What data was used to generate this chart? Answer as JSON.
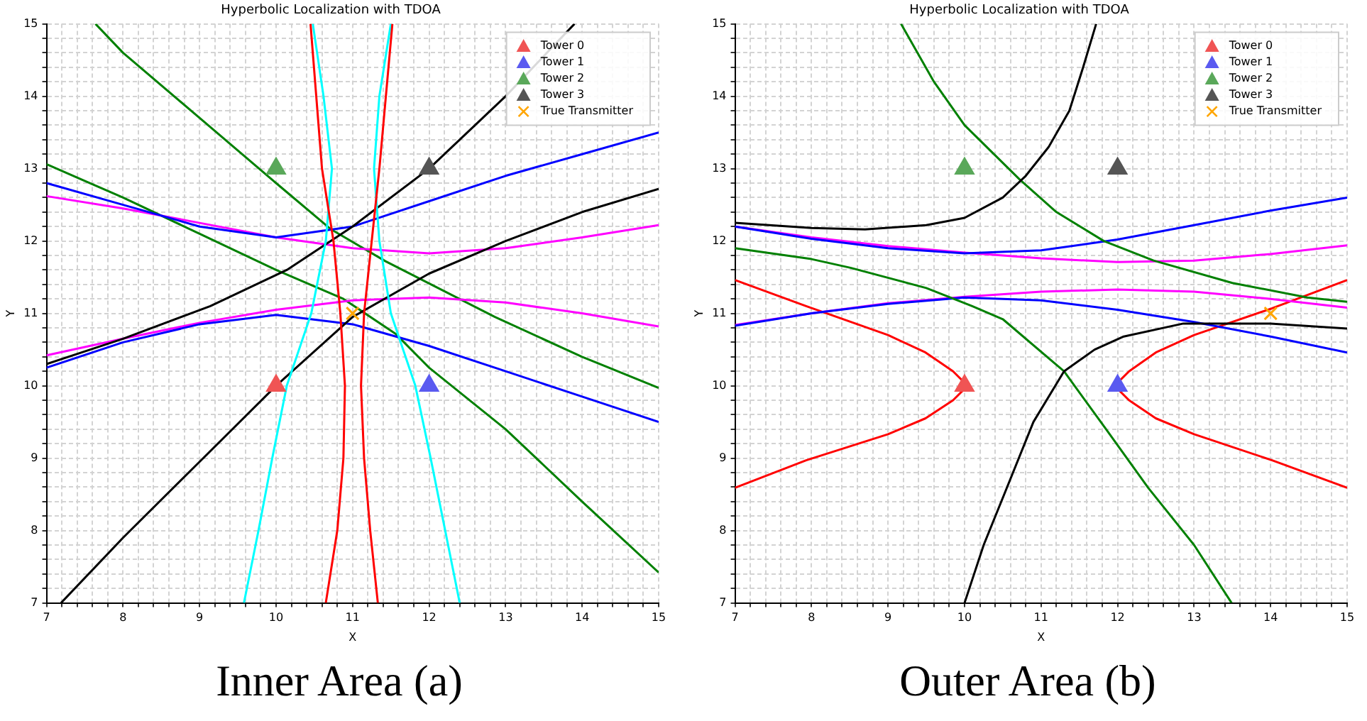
{
  "chart_data": [
    {
      "type": "line",
      "title": "Hyperbolic Localization with TDOA",
      "xlabel": "X",
      "ylabel": "Y",
      "annotations": [
        "Inner Area (a)"
      ],
      "legend": "top right",
      "grid": true,
      "xlim": [
        7,
        15
      ],
      "ylim": [
        7,
        15
      ],
      "xticks": [
        7,
        {
          "value": 7.2,
          "label": null
        },
        {
          "value": 7.4,
          "label": null
        },
        {
          "value": 7.6,
          "label": null
        },
        {
          "value": 7.8,
          "label": null
        },
        8,
        {
          "value": 8.2,
          "label": null
        },
        {
          "value": 8.4,
          "label": null
        },
        {
          "value": 8.6,
          "label": null
        },
        {
          "value": 8.8,
          "label": null
        },
        9,
        {
          "value": 9.2,
          "label": null
        },
        {
          "value": 9.4,
          "label": null
        },
        {
          "value": 9.6,
          "label": null
        },
        {
          "value": 9.8,
          "label": null
        },
        10,
        {
          "value": 10.2,
          "label": null
        },
        {
          "value": 10.4,
          "label": null
        },
        {
          "value": 10.6,
          "label": null
        },
        {
          "value": 10.8,
          "label": null
        },
        11,
        {
          "value": 11.2,
          "label": null
        },
        {
          "value": 11.4,
          "label": null
        },
        {
          "value": 11.6,
          "label": null
        },
        {
          "value": 11.8,
          "label": null
        },
        12,
        {
          "value": 12.2,
          "label": null
        },
        {
          "value": 12.4,
          "label": null
        },
        {
          "value": 12.6,
          "label": null
        },
        {
          "value": 12.8,
          "label": null
        },
        13,
        {
          "value": 13.2,
          "label": null
        },
        {
          "value": 13.4,
          "label": null
        },
        {
          "value": 13.6,
          "label": null
        },
        {
          "value": 13.8,
          "label": null
        },
        14,
        {
          "value": 14.2,
          "label": null
        },
        {
          "value": 14.4,
          "label": null
        },
        {
          "value": 14.6,
          "label": null
        },
        {
          "value": 14.8,
          "label": null
        },
        15
      ],
      "yticks": [
        7,
        {
          "value": 7.2,
          "label": null
        },
        {
          "value": 7.4,
          "label": null
        },
        {
          "value": 7.6,
          "label": null
        },
        {
          "value": 7.8,
          "label": null
        },
        8,
        {
          "value": 8.2,
          "label": null
        },
        {
          "value": 8.4,
          "label": null
        },
        {
          "value": 8.6,
          "label": null
        },
        {
          "value": 8.8,
          "label": null
        },
        9,
        {
          "value": 9.2,
          "label": null
        },
        {
          "value": 9.4,
          "label": null
        },
        {
          "value": 9.6,
          "label": null
        },
        {
          "value": 9.8,
          "label": null
        },
        10,
        {
          "value": 10.2,
          "label": null
        },
        {
          "value": 10.4,
          "label": null
        },
        {
          "value": 10.6,
          "label": null
        },
        {
          "value": 10.8,
          "label": null
        },
        11,
        {
          "value": 11.2,
          "label": null
        },
        {
          "value": 11.4,
          "label": null
        },
        {
          "value": 11.6,
          "label": null
        },
        {
          "value": 11.8,
          "label": null
        },
        12,
        {
          "value": 12.2,
          "label": null
        },
        {
          "value": 12.4,
          "label": null
        },
        {
          "value": 12.6,
          "label": null
        },
        {
          "value": 12.8,
          "label": null
        },
        13,
        {
          "value": 13.2,
          "label": null
        },
        {
          "value": 13.4,
          "label": null
        },
        {
          "value": 13.6,
          "label": null
        },
        {
          "value": 13.8,
          "label": null
        },
        14,
        {
          "value": 14.2,
          "label": null
        },
        {
          "value": 14.4,
          "label": null
        },
        {
          "value": 14.6,
          "label": null
        },
        {
          "value": 14.8,
          "label": null
        },
        15
      ],
      "series": [
        {
          "name": "Tower 0",
          "type": "scatter",
          "marker": "triangle",
          "color": "#f05454",
          "x": [
            10
          ],
          "values": [
            10
          ]
        },
        {
          "name": "Tower 1",
          "type": "scatter",
          "marker": "triangle",
          "color": "#5a5af0",
          "x": [
            12
          ],
          "values": [
            10
          ]
        },
        {
          "name": "Tower 2",
          "type": "scatter",
          "marker": "triangle",
          "color": "#5aa85a",
          "x": [
            10
          ],
          "values": [
            13
          ]
        },
        {
          "name": "Tower 3",
          "type": "scatter",
          "marker": "triangle",
          "color": "#555555",
          "x": [
            12
          ],
          "values": [
            13
          ]
        },
        {
          "name": "True Transmitter",
          "type": "scatter",
          "marker": "cross",
          "color": "#ffa500",
          "x": [
            11
          ],
          "values": [
            11
          ]
        },
        {
          "type": "line",
          "marker": "none",
          "color": "#ff0000",
          "x": [
            10.45,
            10.6,
            10.75,
            10.84,
            10.9,
            10.88,
            10.8,
            10.65
          ],
          "values": [
            15,
            13,
            12,
            11,
            10,
            9,
            8,
            7
          ]
        },
        {
          "type": "line",
          "marker": "none",
          "color": "#ff0000",
          "x": [
            11.52,
            11.35,
            11.25,
            11.15,
            11.11,
            11.15,
            11.23,
            11.33
          ],
          "values": [
            15,
            13,
            12,
            11,
            10,
            9,
            8,
            7
          ]
        },
        {
          "type": "line",
          "marker": "none",
          "color": "#00ffff",
          "x": [
            10.48,
            10.62,
            10.73,
            10.65,
            10.46,
            10.14,
            9.95,
            9.77,
            9.58
          ],
          "values": [
            15,
            14,
            13,
            12,
            11,
            10,
            9,
            8,
            7
          ]
        },
        {
          "type": "line",
          "marker": "none",
          "color": "#00ffff",
          "x": [
            11.5,
            11.35,
            11.28,
            11.35,
            11.5,
            11.82,
            12.02,
            12.21,
            12.4
          ],
          "values": [
            15,
            14,
            13,
            12,
            11,
            10,
            9,
            8,
            7
          ]
        },
        {
          "type": "line",
          "marker": "none",
          "color": "#000000",
          "x": [
            7,
            8,
            9.14,
            10.14,
            11,
            12,
            13,
            13.9
          ],
          "values": [
            10.3,
            10.65,
            11.1,
            11.6,
            12.2,
            13,
            14,
            15
          ]
        },
        {
          "type": "line",
          "marker": "none",
          "color": "#000000",
          "x": [
            7.19,
            8,
            9,
            10,
            11,
            12,
            13,
            14,
            15
          ],
          "values": [
            7,
            7.9,
            8.95,
            10,
            10.95,
            11.55,
            12,
            12.4,
            12.72
          ]
        },
        {
          "type": "line",
          "marker": "none",
          "color": "#0000ff",
          "x": [
            7,
            8,
            9,
            10,
            11,
            12,
            13,
            14,
            15
          ],
          "values": [
            12.8,
            12.5,
            12.2,
            12.05,
            12.2,
            12.55,
            12.9,
            13.2,
            13.5
          ]
        },
        {
          "type": "line",
          "marker": "none",
          "color": "#0000ff",
          "x": [
            7,
            8,
            9,
            10,
            11,
            12,
            13,
            14,
            15
          ],
          "values": [
            10.25,
            10.6,
            10.85,
            10.98,
            10.85,
            10.55,
            10.2,
            9.85,
            9.5
          ]
        },
        {
          "type": "line",
          "marker": "none",
          "color": "#ff00ff",
          "x": [
            7,
            8,
            9,
            10,
            11,
            12,
            13,
            14,
            15
          ],
          "values": [
            12.62,
            12.45,
            12.25,
            12.05,
            11.9,
            11.83,
            11.9,
            12.05,
            12.22
          ]
        },
        {
          "type": "line",
          "marker": "none",
          "color": "#ff00ff",
          "x": [
            7,
            8,
            9,
            10,
            11,
            12,
            13,
            14,
            15
          ],
          "values": [
            10.42,
            10.65,
            10.87,
            11.05,
            11.18,
            11.22,
            11.15,
            11,
            10.82
          ]
        },
        {
          "type": "line",
          "marker": "none",
          "color": "#008000",
          "x": [
            7.64,
            8,
            9,
            10,
            10.72,
            11.43,
            12.86,
            14,
            15
          ],
          "values": [
            15,
            14.6,
            13.7,
            12.8,
            12.16,
            11.72,
            10.95,
            10.4,
            9.97
          ]
        },
        {
          "type": "line",
          "marker": "none",
          "color": "#008000",
          "x": [
            7,
            8,
            9,
            10,
            10.88,
            11.56,
            12,
            13,
            14,
            15
          ],
          "values": [
            13.06,
            12.6,
            12.1,
            11.6,
            11.2,
            10.72,
            10.25,
            9.4,
            8.4,
            7.42
          ]
        }
      ]
    },
    {
      "type": "line",
      "title": "Hyperbolic Localization with TDOA",
      "xlabel": "X",
      "ylabel": "Y",
      "annotations": [
        "Outer Area (b)"
      ],
      "legend": "top right",
      "grid": true,
      "xlim": [
        7,
        15
      ],
      "ylim": [
        7,
        15
      ],
      "xticks": [
        7,
        {
          "value": 7.2,
          "label": null
        },
        {
          "value": 7.4,
          "label": null
        },
        {
          "value": 7.6,
          "label": null
        },
        {
          "value": 7.8,
          "label": null
        },
        8,
        {
          "value": 8.2,
          "label": null
        },
        {
          "value": 8.4,
          "label": null
        },
        {
          "value": 8.6,
          "label": null
        },
        {
          "value": 8.8,
          "label": null
        },
        9,
        {
          "value": 9.2,
          "label": null
        },
        {
          "value": 9.4,
          "label": null
        },
        {
          "value": 9.6,
          "label": null
        },
        {
          "value": 9.8,
          "label": null
        },
        10,
        {
          "value": 10.2,
          "label": null
        },
        {
          "value": 10.4,
          "label": null
        },
        {
          "value": 10.6,
          "label": null
        },
        {
          "value": 10.8,
          "label": null
        },
        11,
        {
          "value": 11.2,
          "label": null
        },
        {
          "value": 11.4,
          "label": null
        },
        {
          "value": 11.6,
          "label": null
        },
        {
          "value": 11.8,
          "label": null
        },
        12,
        {
          "value": 12.2,
          "label": null
        },
        {
          "value": 12.4,
          "label": null
        },
        {
          "value": 12.6,
          "label": null
        },
        {
          "value": 12.8,
          "label": null
        },
        13,
        {
          "value": 13.2,
          "label": null
        },
        {
          "value": 13.4,
          "label": null
        },
        {
          "value": 13.6,
          "label": null
        },
        {
          "value": 13.8,
          "label": null
        },
        14,
        {
          "value": 14.2,
          "label": null
        },
        {
          "value": 14.4,
          "label": null
        },
        {
          "value": 14.6,
          "label": null
        },
        {
          "value": 14.8,
          "label": null
        },
        15
      ],
      "yticks": [
        7,
        {
          "value": 7.2,
          "label": null
        },
        {
          "value": 7.4,
          "label": null
        },
        {
          "value": 7.6,
          "label": null
        },
        {
          "value": 7.8,
          "label": null
        },
        8,
        {
          "value": 8.2,
          "label": null
        },
        {
          "value": 8.4,
          "label": null
        },
        {
          "value": 8.6,
          "label": null
        },
        {
          "value": 8.8,
          "label": null
        },
        9,
        {
          "value": 9.2,
          "label": null
        },
        {
          "value": 9.4,
          "label": null
        },
        {
          "value": 9.6,
          "label": null
        },
        {
          "value": 9.8,
          "label": null
        },
        10,
        {
          "value": 10.2,
          "label": null
        },
        {
          "value": 10.4,
          "label": null
        },
        {
          "value": 10.6,
          "label": null
        },
        {
          "value": 10.8,
          "label": null
        },
        11,
        {
          "value": 11.2,
          "label": null
        },
        {
          "value": 11.4,
          "label": null
        },
        {
          "value": 11.6,
          "label": null
        },
        {
          "value": 11.8,
          "label": null
        },
        12,
        {
          "value": 12.2,
          "label": null
        },
        {
          "value": 12.4,
          "label": null
        },
        {
          "value": 12.6,
          "label": null
        },
        {
          "value": 12.8,
          "label": null
        },
        13,
        {
          "value": 13.2,
          "label": null
        },
        {
          "value": 13.4,
          "label": null
        },
        {
          "value": 13.6,
          "label": null
        },
        {
          "value": 13.8,
          "label": null
        },
        14,
        {
          "value": 14.2,
          "label": null
        },
        {
          "value": 14.4,
          "label": null
        },
        {
          "value": 14.6,
          "label": null
        },
        {
          "value": 14.8,
          "label": null
        },
        15
      ],
      "series": [
        {
          "name": "Tower 0",
          "type": "scatter",
          "marker": "triangle",
          "color": "#f05454",
          "x": [
            10
          ],
          "values": [
            10
          ]
        },
        {
          "name": "Tower 1",
          "type": "scatter",
          "marker": "triangle",
          "color": "#5a5af0",
          "x": [
            12
          ],
          "values": [
            10
          ]
        },
        {
          "name": "Tower 2",
          "type": "scatter",
          "marker": "triangle",
          "color": "#5aa85a",
          "x": [
            10
          ],
          "values": [
            13
          ]
        },
        {
          "name": "Tower 3",
          "type": "scatter",
          "marker": "triangle",
          "color": "#555555",
          "x": [
            12
          ],
          "values": [
            13
          ]
        },
        {
          "name": "True Transmitter",
          "type": "scatter",
          "marker": "cross",
          "color": "#ffa500",
          "x": [
            14
          ],
          "values": [
            11
          ]
        },
        {
          "type": "line",
          "marker": "none",
          "color": "#000000",
          "x": [
            7,
            8,
            8.7,
            9.5,
            10,
            10.5,
            10.8,
            11.1,
            11.37,
            11.55,
            11.72
          ],
          "values": [
            12.25,
            12.18,
            12.16,
            12.22,
            12.32,
            12.6,
            12.9,
            13.3,
            13.8,
            14.4,
            15
          ]
        },
        {
          "type": "line",
          "marker": "none",
          "color": "#000000",
          "x": [
            10,
            10.25,
            10.53,
            10.9,
            11.3,
            11.7,
            12.08,
            12.86,
            14,
            15
          ],
          "values": [
            7,
            7.8,
            8.53,
            9.5,
            10.2,
            10.5,
            10.68,
            10.86,
            10.86,
            10.79
          ]
        },
        {
          "type": "line",
          "marker": "none",
          "color": "#008000",
          "x": [
            9.17,
            9.6,
            10,
            10.72,
            11.2,
            11.82,
            12.47,
            13.5,
            14.48,
            15
          ],
          "values": [
            15,
            14.2,
            13.6,
            12.85,
            12.4,
            12,
            11.73,
            11.42,
            11.22,
            11.16
          ]
        },
        {
          "type": "line",
          "marker": "none",
          "color": "#008000",
          "x": [
            7,
            8,
            8.51,
            9.5,
            10.1,
            10.5,
            11.3,
            11.85,
            12.4,
            13,
            13.49
          ],
          "values": [
            11.9,
            11.75,
            11.63,
            11.35,
            11.1,
            10.92,
            10.2,
            9.4,
            8.59,
            7.8,
            7
          ]
        },
        {
          "type": "line",
          "marker": "none",
          "color": "#0000ff",
          "x": [
            7,
            8,
            9,
            10,
            11,
            12,
            13,
            14,
            15
          ],
          "values": [
            12.2,
            12.03,
            11.9,
            11.83,
            11.87,
            12.02,
            12.22,
            12.42,
            12.6
          ]
        },
        {
          "type": "line",
          "marker": "none",
          "color": "#0000ff",
          "x": [
            7,
            8,
            9,
            10,
            11,
            12,
            13,
            14,
            15
          ],
          "values": [
            10.83,
            11,
            11.13,
            11.22,
            11.18,
            11.05,
            10.88,
            10.68,
            10.46
          ]
        },
        {
          "type": "line",
          "marker": "none",
          "color": "#ff00ff",
          "x": [
            7,
            8,
            9,
            10,
            11,
            12,
            13,
            14,
            15
          ],
          "values": [
            12.2,
            12.05,
            11.93,
            11.84,
            11.76,
            11.71,
            11.73,
            11.82,
            11.94
          ]
        },
        {
          "type": "line",
          "marker": "none",
          "color": "#ff00ff",
          "x": [
            7,
            8,
            9,
            10,
            11,
            12,
            13,
            14,
            15
          ],
          "values": [
            10.84,
            11,
            11.14,
            11.23,
            11.3,
            11.33,
            11.3,
            11.2,
            11.08
          ]
        },
        {
          "type": "line",
          "marker": "none",
          "color": "#ff0000",
          "x": [
            7,
            7.93,
            9,
            9.49,
            9.85,
            10.04,
            9.85,
            9.49,
            9,
            7.93,
            7
          ],
          "values": [
            11.46,
            11.1,
            10.7,
            10.46,
            10.2,
            10,
            9.8,
            9.55,
            9.33,
            8.97,
            8.59
          ]
        },
        {
          "type": "line",
          "marker": "none",
          "color": "#ff0000",
          "x": [
            15,
            14.02,
            13,
            12.5,
            12.15,
            11.96,
            12.15,
            12.5,
            13,
            14.02,
            15
          ],
          "values": [
            11.46,
            11.07,
            10.7,
            10.46,
            10.2,
            10,
            9.8,
            9.55,
            9.33,
            8.97,
            8.59
          ]
        }
      ]
    }
  ]
}
